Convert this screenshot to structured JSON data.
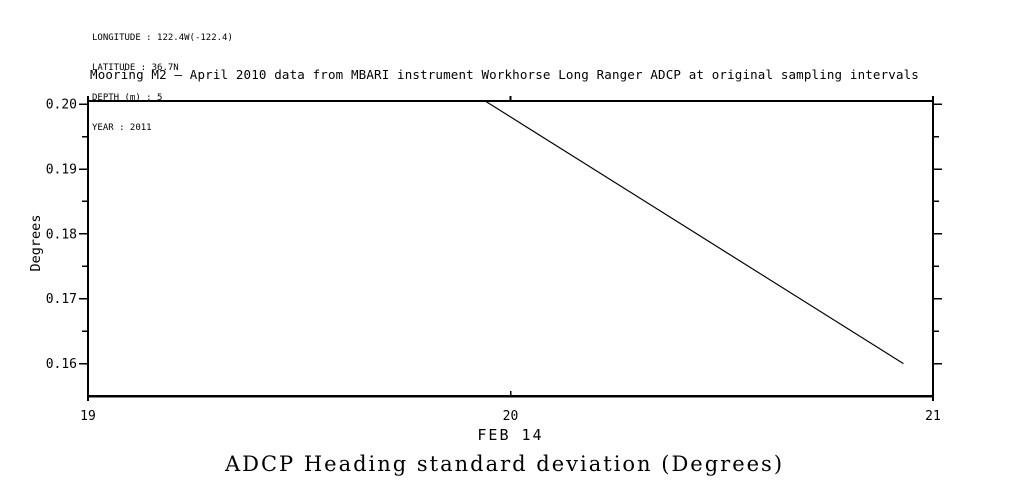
{
  "metadata": {
    "longitude": "LONGITUDE : 122.4W(-122.4)",
    "latitude": "LATITUDE : 36.7N",
    "depth": "DEPTH (m) : 5",
    "year": "YEAR : 2011"
  },
  "header": {
    "title": "Mooring M2 – April 2010 data from MBARI instrument Workhorse Long Ranger ADCP at original sampling intervals"
  },
  "caption": "ADCP Heading standard deviation (Degrees)",
  "chart_data": {
    "type": "line",
    "title": "Mooring M2 – April 2010 data from MBARI instrument Workhorse Long Ranger ADCP at original sampling intervals",
    "bottom_caption": "ADCP Heading standard deviation (Degrees)",
    "xlabel": "FEB 14",
    "ylabel": "Degrees",
    "xlim": [
      19,
      21
    ],
    "ylim": [
      0.155,
      0.2005
    ],
    "x_ticks": [
      19,
      20,
      21
    ],
    "x_tick_labels": [
      "19",
      "20",
      "21"
    ],
    "y_ticks": [
      0.16,
      0.17,
      0.18,
      0.19,
      0.2
    ],
    "y_tick_labels": [
      "0.16",
      "0.17",
      "0.18",
      "0.19",
      "0.20"
    ],
    "y_minor_step": 0.005,
    "grid": false,
    "legend": null,
    "line_color": "#000000",
    "background_color": "#ffffff",
    "series": [
      {
        "name": "ADCP heading standard deviation",
        "color": "#000000",
        "x": [
          19.94,
          20.93
        ],
        "y": [
          0.2005,
          0.16
        ]
      }
    ]
  }
}
